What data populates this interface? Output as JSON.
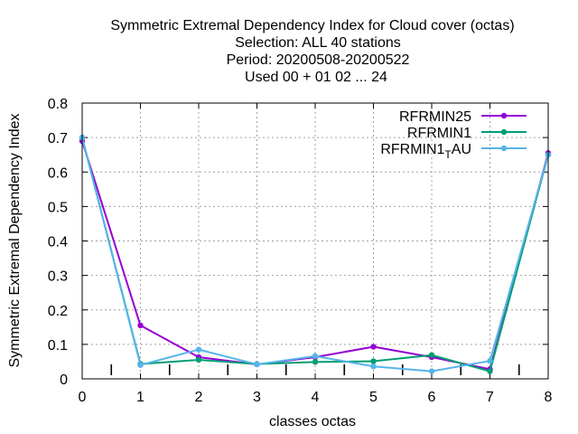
{
  "chart_data": {
    "type": "line",
    "title_lines": [
      "Symmetric Extremal Dependency Index  for Cloud cover (octas)",
      "Selection: ALL     40 stations",
      "Period: 20200508-20200522",
      "Used  00 + 01 02 ... 24"
    ],
    "xlabel": "classes octas",
    "ylabel": "Symmetric Extremal Dependency Index",
    "xlim": [
      0,
      8
    ],
    "ylim": [
      0,
      0.8
    ],
    "x_ticks": [
      "0",
      "1",
      "2",
      "3",
      "4",
      "5",
      "6",
      "7",
      "8"
    ],
    "y_ticks": [
      "0",
      "0.1",
      "0.2",
      "0.3",
      "0.4",
      "0.5",
      "0.6",
      "0.7",
      "0.8"
    ],
    "grid": true,
    "legend_position": "top-right",
    "x": [
      0,
      1,
      2,
      3,
      4,
      5,
      6,
      7,
      8
    ],
    "series": [
      {
        "name": "RFRMIN25",
        "color": "#9400d3",
        "values": [
          0.69,
          0.155,
          0.063,
          0.042,
          0.063,
          0.093,
          0.063,
          0.028,
          0.655
        ]
      },
      {
        "name": "RFRMIN1",
        "color": "#009e73",
        "values": [
          0.7,
          0.043,
          0.055,
          0.043,
          0.049,
          0.051,
          0.069,
          0.022,
          0.65
        ]
      },
      {
        "name_main": "RFRMIN1",
        "name_sub": "T",
        "name_rest": "AU",
        "color": "#56b4e9",
        "values": [
          0.7,
          0.04,
          0.085,
          0.042,
          0.066,
          0.036,
          0.022,
          0.052,
          0.65
        ]
      }
    ],
    "marker_ticks_x": [
      0.5,
      1.5,
      2.5,
      3.5,
      4.5,
      5.5,
      6.5,
      7.5
    ]
  }
}
